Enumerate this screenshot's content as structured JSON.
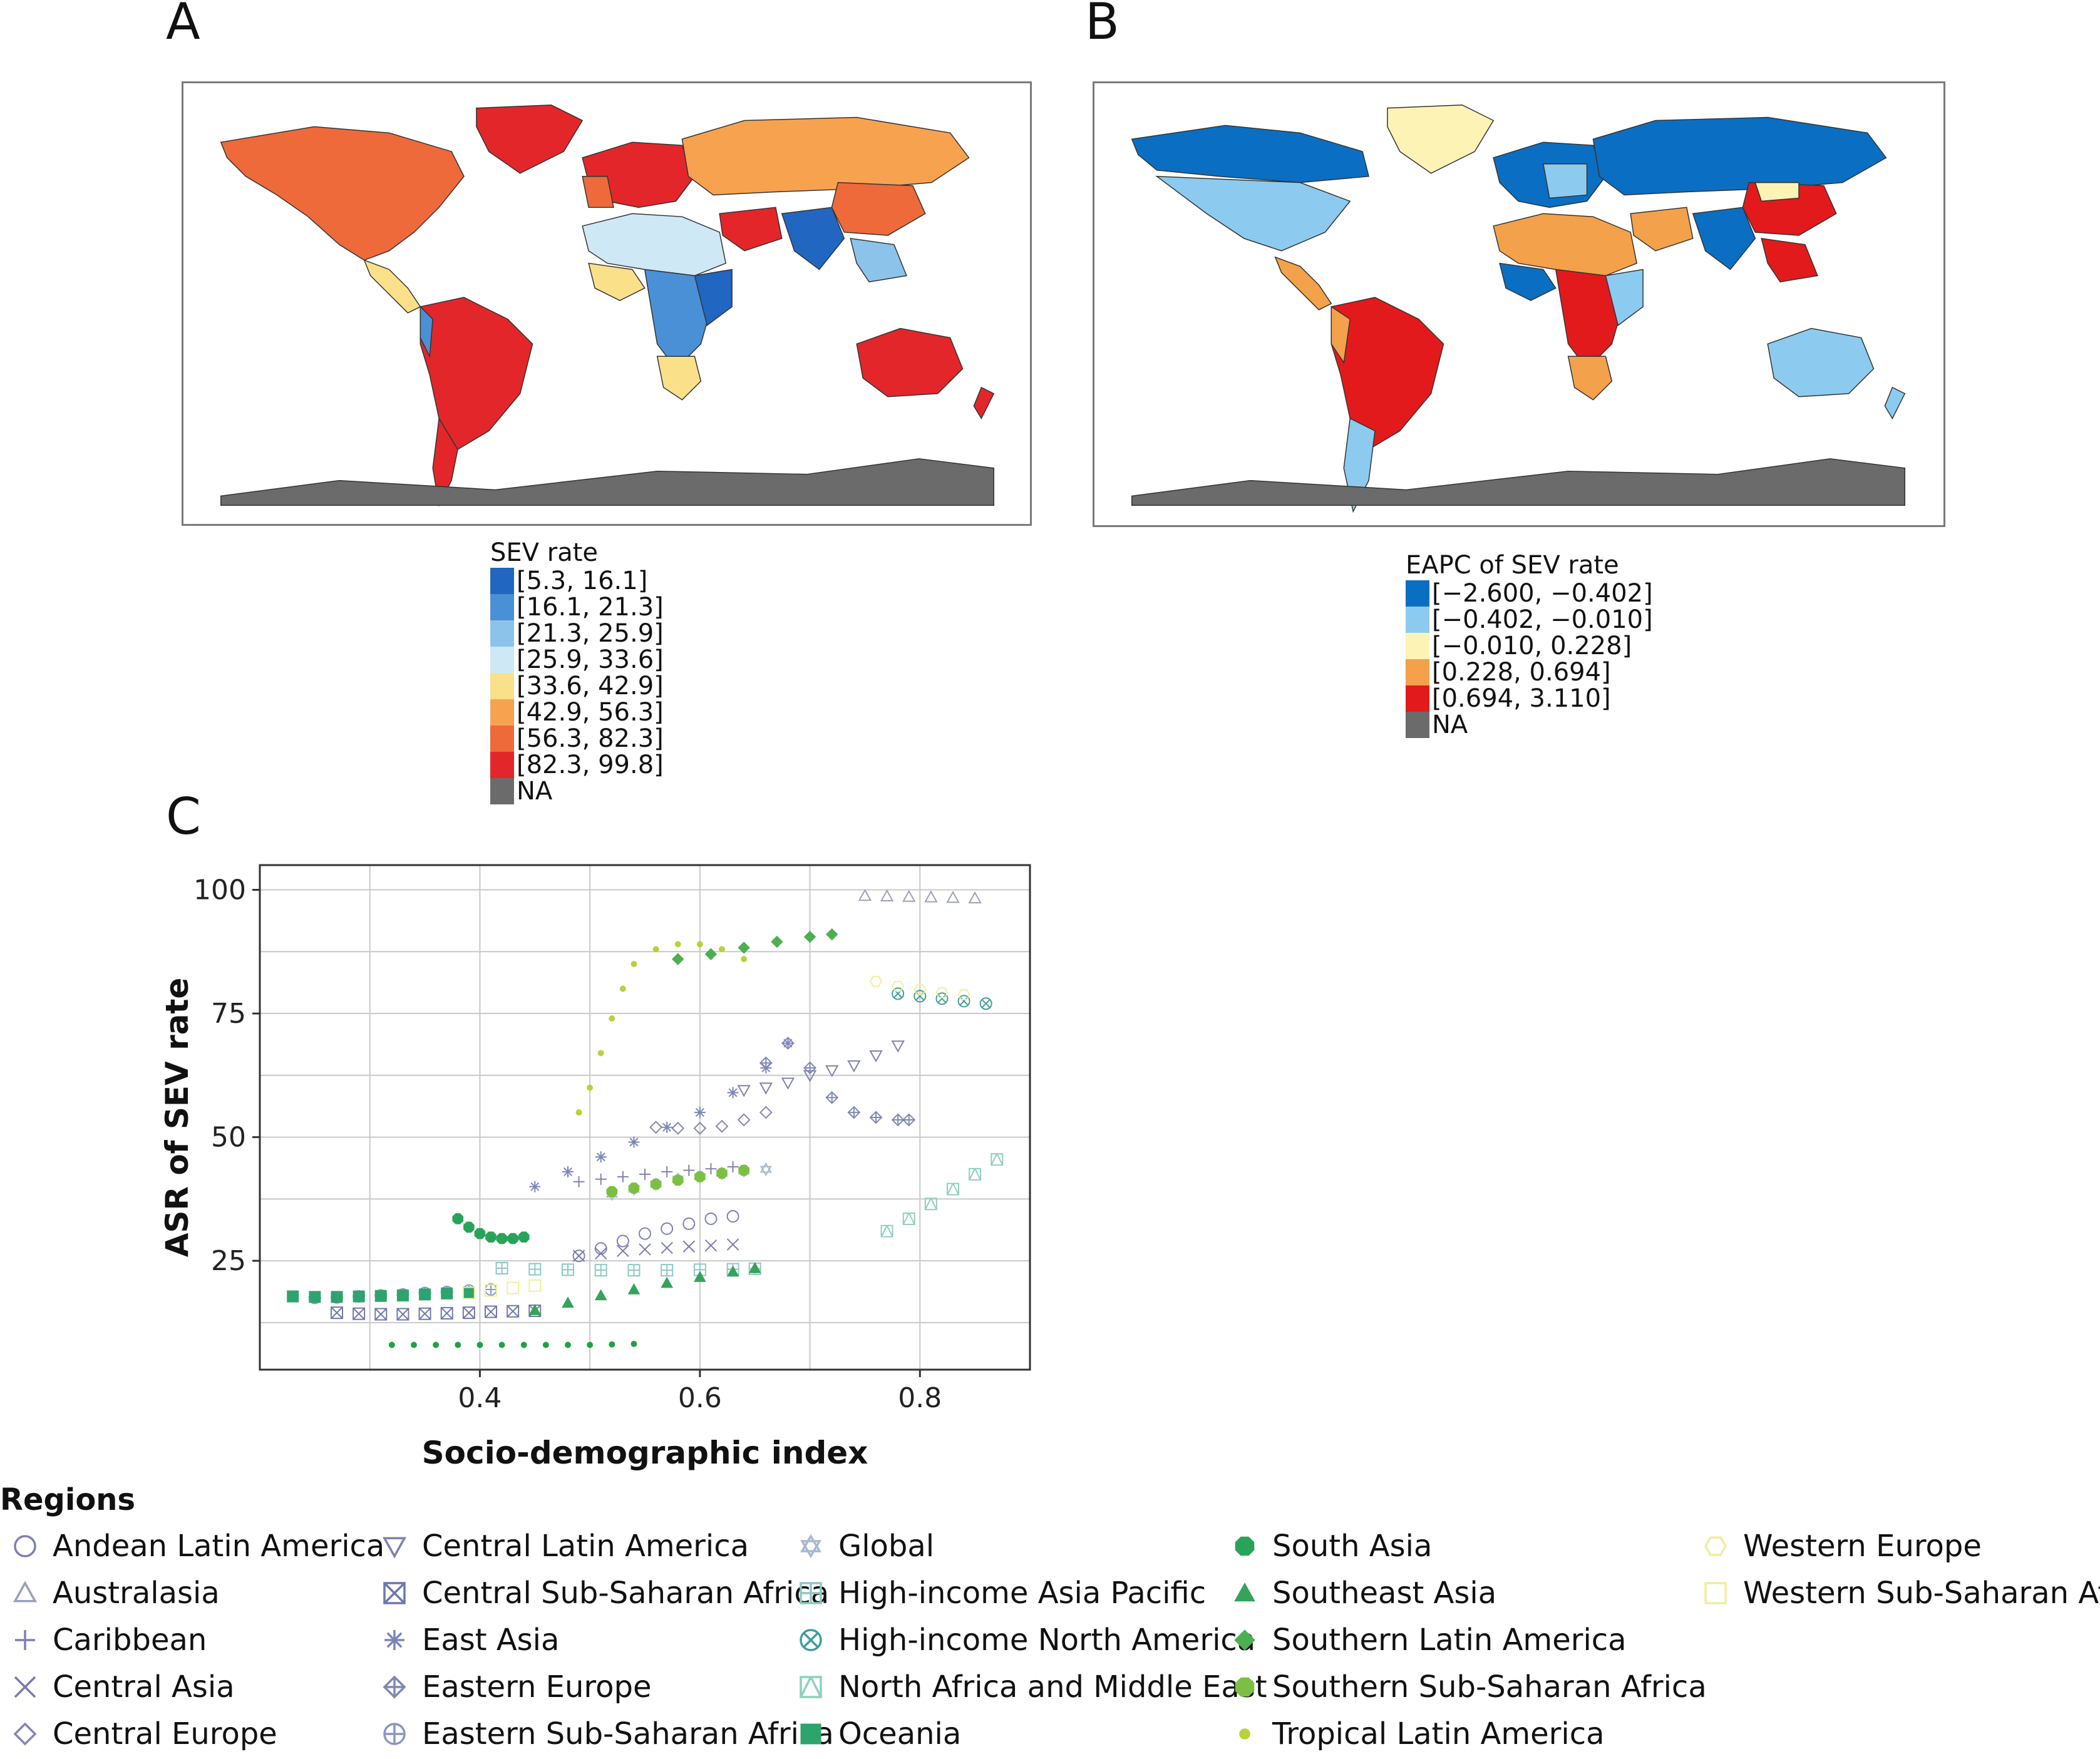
{
  "panels": {
    "a": {
      "letter": "A"
    },
    "b": {
      "letter": "B"
    },
    "c": {
      "letter": "C"
    }
  },
  "map_a": {
    "legend_title": "SEV rate",
    "bins": [
      {
        "label": "[5.3, 16.1]",
        "color": "#2166c0"
      },
      {
        "label": "[16.1, 21.3]",
        "color": "#4a90d6"
      },
      {
        "label": "[21.3, 25.9]",
        "color": "#8cc3ea"
      },
      {
        "label": "[25.9, 33.6]",
        "color": "#cfe8f6"
      },
      {
        "label": "[33.6, 42.9]",
        "color": "#fbe08a"
      },
      {
        "label": "[42.9, 56.3]",
        "color": "#f7a24f"
      },
      {
        "label": "[56.3, 82.3]",
        "color": "#ee6a3a"
      },
      {
        "label": "[82.3, 99.8]",
        "color": "#e3262a"
      },
      {
        "label": "NA",
        "color": "#6b6b6b"
      }
    ]
  },
  "map_b": {
    "legend_title": "EAPC of SEV rate",
    "bins": [
      {
        "label": "[−2.600, −0.402]",
        "color": "#0a6fc2"
      },
      {
        "label": "[−0.402, −0.010]",
        "color": "#8ccbef"
      },
      {
        "label": "[−0.010, 0.228]",
        "color": "#fdf3b5"
      },
      {
        "label": "[0.228, 0.694]",
        "color": "#f3a14a"
      },
      {
        "label": "[0.694, 3.110]",
        "color": "#e31a1c"
      },
      {
        "label": "NA",
        "color": "#6b6b6b"
      }
    ]
  },
  "chart_data": {
    "type": "scatter",
    "xlabel": "Socio-demographic index",
    "ylabel": "ASR of SEV rate",
    "xlim": [
      0.2,
      0.9
    ],
    "ylim": [
      3,
      105
    ],
    "xticks": [
      0.4,
      0.6,
      0.8
    ],
    "xtick_labels": [
      "0.4",
      "0.6",
      "0.8"
    ],
    "yticks": [
      25,
      50,
      75,
      100
    ],
    "ytick_labels": [
      "25",
      "50",
      "75",
      "100"
    ],
    "grid": true,
    "legend_title": "Regions",
    "series": [
      {
        "name": "Andean Latin America",
        "symbol": "circle",
        "color": "#7f7fb5",
        "x": [
          0.49,
          0.51,
          0.53,
          0.55,
          0.57,
          0.59,
          0.61,
          0.63
        ],
        "y": [
          26,
          27.5,
          29,
          30.5,
          31.5,
          32.5,
          33.5,
          34
        ]
      },
      {
        "name": "Australasia",
        "symbol": "triangle",
        "color": "#9aa0b8",
        "x": [
          0.75,
          0.77,
          0.79,
          0.81,
          0.83,
          0.85
        ],
        "y": [
          98.8,
          98.7,
          98.6,
          98.5,
          98.4,
          98.3
        ]
      },
      {
        "name": "Caribbean",
        "symbol": "plus",
        "color": "#8080b0",
        "x": [
          0.49,
          0.51,
          0.53,
          0.55,
          0.57,
          0.59,
          0.61,
          0.63
        ],
        "y": [
          41,
          41.5,
          42,
          42.5,
          43,
          43.3,
          43.6,
          44
        ]
      },
      {
        "name": "Central Asia",
        "symbol": "cross",
        "color": "#7a7ab0",
        "x": [
          0.49,
          0.51,
          0.53,
          0.55,
          0.57,
          0.59,
          0.61,
          0.63
        ],
        "y": [
          26,
          26.5,
          27,
          27.3,
          27.6,
          27.9,
          28.1,
          28.3
        ]
      },
      {
        "name": "Central Europe",
        "symbol": "diamond",
        "color": "#8585b5",
        "x": [
          0.56,
          0.58,
          0.6,
          0.62,
          0.64,
          0.66
        ],
        "y": [
          52,
          51.8,
          51.8,
          52.2,
          53.5,
          55
        ]
      },
      {
        "name": "Central Latin America",
        "symbol": "triangle-down",
        "color": "#8080b0",
        "x": [
          0.64,
          0.66,
          0.68,
          0.7,
          0.72,
          0.74,
          0.76,
          0.78
        ],
        "y": [
          59.5,
          60,
          61,
          62.5,
          63.5,
          64.5,
          66.5,
          68.5
        ]
      },
      {
        "name": "Central Sub-Saharan Africa",
        "symbol": "square-x",
        "color": "#6f78aa",
        "x": [
          0.27,
          0.29,
          0.31,
          0.33,
          0.35,
          0.37,
          0.39,
          0.41,
          0.43,
          0.45
        ],
        "y": [
          14.5,
          14.3,
          14.2,
          14.2,
          14.3,
          14.4,
          14.5,
          14.7,
          14.8,
          14.9
        ]
      },
      {
        "name": "East Asia",
        "symbol": "asterisk",
        "color": "#7a86b8",
        "x": [
          0.45,
          0.48,
          0.51,
          0.54,
          0.57,
          0.6,
          0.63,
          0.66,
          0.68
        ],
        "y": [
          40,
          43,
          46,
          49,
          52,
          55,
          59,
          64,
          69
        ]
      },
      {
        "name": "Eastern Europe",
        "symbol": "diamond-plus",
        "color": "#7f88b5",
        "x": [
          0.66,
          0.68,
          0.7,
          0.72,
          0.74,
          0.76,
          0.78,
          0.79
        ],
        "y": [
          65,
          69,
          64,
          58,
          55,
          54,
          53.5,
          53.5
        ]
      },
      {
        "name": "Eastern Sub-Saharan Africa",
        "symbol": "circle-plus",
        "color": "#8a96c2",
        "x": [
          0.25,
          0.27,
          0.29,
          0.31,
          0.33,
          0.35,
          0.37,
          0.39,
          0.41
        ],
        "y": [
          17.5,
          17.6,
          17.8,
          18,
          18.2,
          18.5,
          18.7,
          19,
          19.2
        ]
      },
      {
        "name": "Global",
        "symbol": "star-of-david",
        "color": "#a9b7cf",
        "x": [
          0.52,
          0.54,
          0.56,
          0.58,
          0.6,
          0.62,
          0.64,
          0.66
        ],
        "y": [
          38.5,
          39.5,
          40.5,
          41.5,
          42,
          42.7,
          43.2,
          43.5
        ]
      },
      {
        "name": "High-income Asia Pacific",
        "symbol": "square-plus",
        "color": "#8ec8c2",
        "x": [
          0.42,
          0.45,
          0.48,
          0.51,
          0.54,
          0.57,
          0.6,
          0.63,
          0.65
        ],
        "y": [
          23.5,
          23.3,
          23.2,
          23.1,
          23.1,
          23.1,
          23.2,
          23.3,
          23.4
        ]
      },
      {
        "name": "High-income North America",
        "symbol": "circle-x",
        "color": "#3f9e9c",
        "x": [
          0.78,
          0.8,
          0.82,
          0.84,
          0.86
        ],
        "y": [
          79,
          78.5,
          78,
          77.5,
          77
        ]
      },
      {
        "name": "North Africa and Middle East",
        "symbol": "square-triangle",
        "color": "#8fcfbf",
        "x": [
          0.77,
          0.79,
          0.81,
          0.83,
          0.85,
          0.87
        ],
        "y": [
          31,
          33.5,
          36.5,
          39.5,
          42.5,
          45.5
        ]
      },
      {
        "name": "Oceania",
        "symbol": "square",
        "color": "#2fa36d",
        "x": [
          0.23,
          0.25,
          0.27,
          0.29,
          0.31,
          0.33,
          0.35,
          0.37,
          0.39
        ],
        "y": [
          17.8,
          17.7,
          17.7,
          17.8,
          17.9,
          18,
          18.2,
          18.4,
          18.6
        ]
      },
      {
        "name": "South Asia",
        "symbol": "octagon",
        "color": "#29a35a",
        "x": [
          0.38,
          0.39,
          0.4,
          0.41,
          0.42,
          0.43,
          0.44
        ],
        "y": [
          33.5,
          31.8,
          30.5,
          29.8,
          29.5,
          29.5,
          29.8
        ]
      },
      {
        "name": "Southeast Asia",
        "symbol": "triangle-filled",
        "color": "#35a35a",
        "x": [
          0.45,
          0.48,
          0.51,
          0.54,
          0.57,
          0.6,
          0.63,
          0.65
        ],
        "y": [
          15,
          16.5,
          18,
          19.2,
          20.5,
          21.7,
          22.8,
          23.5
        ]
      },
      {
        "name": "Southern Latin America",
        "symbol": "diamond-filled",
        "color": "#4caf50",
        "x": [
          0.58,
          0.61,
          0.64,
          0.67,
          0.7,
          0.72
        ],
        "y": [
          86,
          87,
          88.3,
          89.5,
          90.5,
          91
        ]
      },
      {
        "name": "Southern Sub-Saharan Africa",
        "symbol": "octagon-filled",
        "color": "#7cc043",
        "x": [
          0.52,
          0.54,
          0.56,
          0.58,
          0.6,
          0.62,
          0.64
        ],
        "y": [
          39,
          39.7,
          40.5,
          41.3,
          42,
          42.7,
          43.3
        ]
      },
      {
        "name": "Tropical Latin America",
        "symbol": "dot",
        "color": "#b5d33a",
        "x": [
          0.49,
          0.5,
          0.51,
          0.52,
          0.53,
          0.54,
          0.56,
          0.58,
          0.6,
          0.62,
          0.64
        ],
        "y": [
          55,
          60,
          67,
          74,
          80,
          85,
          88,
          89,
          89,
          88,
          86
        ]
      },
      {
        "name": "Western Europe",
        "symbol": "hexagon-open",
        "color": "#f2ee9c",
        "x": [
          0.76,
          0.78,
          0.8,
          0.82,
          0.84
        ],
        "y": [
          81.5,
          80.5,
          79.8,
          79.2,
          78.8
        ]
      },
      {
        "name": "Western Sub-Saharan Africa",
        "symbol": "square-open",
        "color": "#f2ee9c",
        "x": [
          0.39,
          0.41,
          0.43,
          0.45
        ],
        "y": [
          18.5,
          19,
          19.5,
          20
        ]
      },
      {
        "name": "",
        "symbol": "dot",
        "color": "#23a045",
        "x": [
          0.32,
          0.34,
          0.36,
          0.38,
          0.4,
          0.42,
          0.44,
          0.46,
          0.48,
          0.5,
          0.52,
          0.54
        ],
        "y": [
          8,
          8,
          8,
          8,
          8,
          8,
          8,
          8,
          8,
          8,
          8.1,
          8.2
        ]
      }
    ]
  }
}
